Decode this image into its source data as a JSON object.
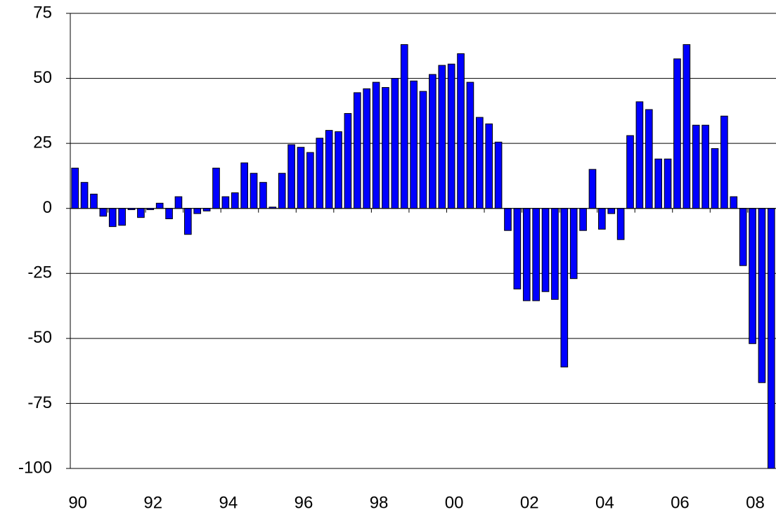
{
  "chart_data": {
    "type": "bar",
    "color": "#0000ff",
    "grid": true,
    "categories": [
      "90",
      null,
      null,
      null,
      null,
      null,
      null,
      null,
      "92",
      null,
      null,
      null,
      null,
      null,
      null,
      null,
      "94",
      null,
      null,
      null,
      null,
      null,
      null,
      null,
      "96",
      null,
      null,
      null,
      null,
      null,
      null,
      null,
      "98",
      null,
      null,
      null,
      null,
      null,
      null,
      null,
      "00",
      null,
      null,
      null,
      null,
      null,
      null,
      null,
      "02",
      null,
      null,
      null,
      null,
      null,
      null,
      null,
      "04",
      null,
      null,
      null,
      null,
      null,
      null,
      null,
      "06",
      null,
      null,
      null,
      null,
      null,
      null,
      null,
      "08",
      null,
      null
    ],
    "values": [
      15.5,
      10,
      5.5,
      -3,
      -7,
      -6.5,
      -0.5,
      -3.5,
      -0.5,
      2,
      -4,
      4.5,
      -10,
      -2,
      -1,
      15.5,
      4.5,
      6,
      17.5,
      13.5,
      10,
      0.5,
      13.5,
      24.5,
      23.5,
      21.5,
      27,
      30,
      29.5,
      36.5,
      44.5,
      46,
      48.5,
      46.5,
      50,
      63,
      49,
      45,
      51.5,
      55,
      55.5,
      59.5,
      48.5,
      35,
      32.5,
      25.5,
      -8.5,
      -31,
      -35.5,
      -35.5,
      -32,
      -35,
      -61,
      -27,
      -8.5,
      15,
      -8,
      -2,
      -12,
      28,
      41,
      38,
      19,
      19,
      57.5,
      63,
      32,
      32,
      23,
      35.5,
      4.5,
      -22,
      -52,
      -67,
      -100
    ],
    "ylim": [
      -100,
      75
    ],
    "yticks": [
      -100,
      -75,
      -50,
      -25,
      0,
      25,
      50,
      75
    ]
  }
}
